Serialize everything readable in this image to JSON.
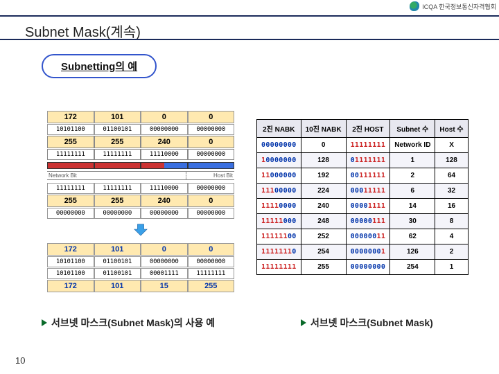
{
  "header": {
    "org": "ICQA 한국정보통신자격협회"
  },
  "title": "Subnet Mask(계속)",
  "pill": "Subnetting의 예",
  "diagram": {
    "ip_dec": [
      "172",
      "101",
      "0",
      "0"
    ],
    "ip_bin": [
      "10101100",
      "01100101",
      "00000000",
      "00000000"
    ],
    "mask_dec": [
      "255",
      "255",
      "240",
      "0"
    ],
    "mask_bin": [
      "11111111",
      "11111111",
      "11110000",
      "00000000"
    ],
    "color1": "#cc3333",
    "color2": "#cc3333",
    "color3a": "#cc3333",
    "color3b": "#3a6fe0",
    "color4": "#3a6fe0",
    "label_net": "Network Bit",
    "label_host": "Host Bit",
    "net_ones": [
      "11111111",
      "11111111",
      "11110000",
      "00000000"
    ],
    "reserved_dec": [
      "255",
      "255",
      "240",
      "0"
    ],
    "reserved_bin": [
      "00000000",
      "00000000",
      "00000000",
      "00000000"
    ],
    "final_top_dec": [
      "172",
      "101",
      "0",
      "0"
    ],
    "final_bin_a": [
      "10101100",
      "01100101",
      "00000000",
      "00000000"
    ],
    "final_bin_b": [
      "10101100",
      "01100101",
      "00001111",
      "11111111"
    ],
    "final_bot_dec": [
      "172",
      "101",
      "15",
      "255"
    ]
  },
  "table": {
    "headers": [
      "2진 NABK",
      "10진 NABK",
      "2진 HOST",
      "Subnet 수",
      "Host 수"
    ],
    "rows": [
      {
        "mask": "00000000",
        "hiMask": 0,
        "dec": "0",
        "host": "11111111",
        "hiHost": 8,
        "sub": "Network ID",
        "hosts": "X",
        "shade": false
      },
      {
        "mask": "10000000",
        "hiMask": 1,
        "dec": "128",
        "host": "01111111",
        "hiHost": 7,
        "sub": "1",
        "hosts": "128",
        "shade": true
      },
      {
        "mask": "11000000",
        "hiMask": 2,
        "dec": "192",
        "host": "00111111",
        "hiHost": 6,
        "sub": "2",
        "hosts": "64",
        "shade": false
      },
      {
        "mask": "11100000",
        "hiMask": 3,
        "dec": "224",
        "host": "00011111",
        "hiHost": 5,
        "sub": "6",
        "hosts": "32",
        "shade": true
      },
      {
        "mask": "11110000",
        "hiMask": 4,
        "dec": "240",
        "host": "00001111",
        "hiHost": 4,
        "sub": "14",
        "hosts": "16",
        "shade": false
      },
      {
        "mask": "11111000",
        "hiMask": 5,
        "dec": "248",
        "host": "00000111",
        "hiHost": 3,
        "sub": "30",
        "hosts": "8",
        "shade": true
      },
      {
        "mask": "11111100",
        "hiMask": 6,
        "dec": "252",
        "host": "00000011",
        "hiHost": 2,
        "sub": "62",
        "hosts": "4",
        "shade": false
      },
      {
        "mask": "11111110",
        "hiMask": 7,
        "dec": "254",
        "host": "00000001",
        "hiHost": 1,
        "sub": "126",
        "hosts": "2",
        "shade": true
      },
      {
        "mask": "11111111",
        "hiMask": 8,
        "dec": "255",
        "host": "00000000",
        "hiHost": 0,
        "sub": "254",
        "hosts": "1",
        "shade": false
      }
    ]
  },
  "caption_left": "서브넷 마스크(Subnet Mask)의 사용 예",
  "caption_right": "서브넷 마스크(Subnet Mask)",
  "page": "10"
}
